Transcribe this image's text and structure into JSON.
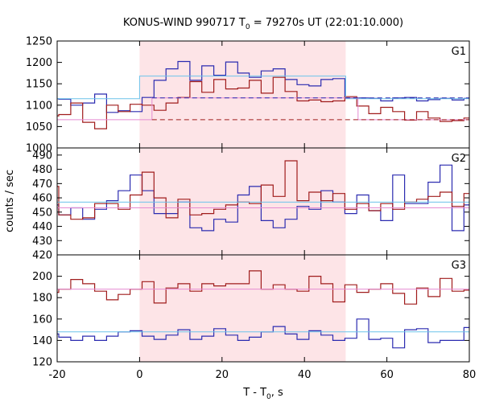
{
  "chart_data": {
    "type": "line",
    "title_parts": {
      "a": "KONUS-WIND 990717 T",
      "sub": "0",
      "b": " = 79270s UT (22:01:10.000)"
    },
    "xlabel_parts": {
      "a": "T - T",
      "sub": "0",
      "b": ", s"
    },
    "ylabel": "counts / sec",
    "xlim": [
      -20,
      80
    ],
    "x_ticks": [
      -20,
      0,
      20,
      40,
      60,
      80
    ],
    "shaded_interval": [
      0,
      50
    ],
    "colors": {
      "blue": "#2b2bb0",
      "red": "#a01c1c",
      "cyan": "#6cc3ea",
      "pink": "#e58bd2",
      "shade": "#fde4e7"
    },
    "panels": [
      {
        "label": "G1",
        "ylim": [
          1000,
          1250
        ],
        "y_ticks": [
          1000,
          1050,
          1100,
          1150,
          1200,
          1250
        ],
        "series": [
          {
            "color": "blue",
            "x": [
              -22.5,
              -19.6,
              -16.7,
              -13.8,
              -10.9,
              -8.0,
              -5.2,
              -2.3,
              0.6,
              3.5,
              6.4,
              9.3,
              12.2,
              15.1,
              18.0,
              20.9,
              23.8,
              26.6,
              29.5,
              32.4,
              35.3,
              38.2,
              41.1,
              44.0,
              46.9,
              49.8,
              52.7,
              55.6,
              58.5,
              61.4,
              64.3,
              67.2,
              70.0,
              72.9,
              75.8,
              78.7
            ],
            "y": [
              1115,
              1114,
              1100,
              1105,
              1126,
              1083,
              1087,
              1085,
              1118,
              1158,
              1185,
              1202,
              1158,
              1192,
              1170,
              1201,
              1175,
              1165,
              1180,
              1185,
              1160,
              1148,
              1145,
              1160,
              1162,
              1117,
              1117,
              1116,
              1110,
              1117,
              1118,
              1110,
              1113,
              1116,
              1112,
              1116
            ]
          },
          {
            "color": "red",
            "x": [
              -22.5,
              -19.6,
              -16.7,
              -13.8,
              -10.9,
              -8.0,
              -5.2,
              -2.3,
              0.6,
              3.5,
              6.4,
              9.3,
              12.2,
              15.1,
              18.0,
              20.9,
              23.8,
              26.6,
              29.5,
              32.4,
              35.3,
              38.2,
              41.1,
              44.0,
              46.9,
              49.8,
              52.7,
              55.6,
              58.5,
              61.4,
              64.3,
              67.2,
              70.0,
              72.9,
              75.8,
              78.7
            ],
            "y": [
              1075,
              1078,
              1105,
              1060,
              1045,
              1100,
              1085,
              1102,
              1100,
              1088,
              1105,
              1118,
              1155,
              1130,
              1160,
              1138,
              1140,
              1158,
              1128,
              1165,
              1132,
              1110,
              1112,
              1108,
              1110,
              1120,
              1098,
              1080,
              1095,
              1085,
              1065,
              1085,
              1070,
              1062,
              1064,
              1070
            ]
          },
          {
            "color": "cyan",
            "x": [
              -20,
              0,
              0,
              50,
              50,
              80
            ],
            "y": [
              1115,
              1115,
              1168,
              1168,
              1115,
              1115
            ],
            "style": "solid"
          },
          {
            "color": "pink",
            "x": [
              -20,
              3,
              3,
              50,
              50,
              53,
              53,
              80
            ],
            "y": [
              1066,
              1066,
              1117,
              1117,
              1117,
              1117,
              1066,
              1066
            ],
            "style": "solid"
          },
          {
            "color": "red",
            "x": [
              3,
              80
            ],
            "y": [
              1066,
              1066
            ],
            "style": "dashed"
          },
          {
            "color": "blue",
            "x": [
              3,
              80
            ],
            "y": [
              1117,
              1117
            ],
            "style": "dashed"
          }
        ]
      },
      {
        "label": "G2",
        "ylim": [
          420,
          495
        ],
        "y_ticks": [
          420,
          430,
          440,
          450,
          460,
          470,
          480,
          490
        ],
        "series": [
          {
            "color": "blue",
            "x": [
              -22.5,
              -19.6,
              -16.7,
              -13.8,
              -10.9,
              -8.0,
              -5.2,
              -2.3,
              0.6,
              3.5,
              6.4,
              9.3,
              12.2,
              15.1,
              18.0,
              20.9,
              23.8,
              26.6,
              29.5,
              32.4,
              35.3,
              38.2,
              41.1,
              44.0,
              46.9,
              49.8,
              52.7,
              55.6,
              58.5,
              61.4,
              64.3,
              67.2,
              70.0,
              72.9,
              75.8,
              78.7
            ],
            "y": [
              455,
              448,
              453,
              445,
              452,
              458,
              465,
              476,
              465,
              449,
              449,
              457,
              439,
              437,
              445,
              443,
              462,
              468,
              444,
              439,
              445,
              454,
              452,
              465,
              457,
              449,
              462,
              451,
              444,
              476,
              456,
              456,
              471,
              483,
              437,
              455
            ]
          },
          {
            "color": "red",
            "x": [
              -22.5,
              -19.6,
              -16.7,
              -13.8,
              -10.9,
              -8.0,
              -5.2,
              -2.3,
              0.6,
              3.5,
              6.4,
              9.3,
              12.2,
              15.1,
              18.0,
              20.9,
              23.8,
              26.6,
              29.5,
              32.4,
              35.3,
              38.2,
              41.1,
              44.0,
              46.9,
              49.8,
              52.7,
              55.6,
              58.5,
              61.4,
              64.3,
              67.2,
              70.0,
              72.9,
              75.8,
              78.7
            ],
            "y": [
              468,
              448,
              445,
              446,
              456,
              456,
              452,
              462,
              478,
              460,
              446,
              459,
              448,
              449,
              452,
              455,
              457,
              456,
              469,
              461,
              486,
              458,
              464,
              458,
              463,
              452,
              456,
              451,
              456,
              452,
              457,
              459,
              461,
              464,
              454,
              463
            ]
          },
          {
            "color": "cyan",
            "x": [
              -20,
              80
            ],
            "y": [
              457,
              457
            ],
            "style": "solid"
          },
          {
            "color": "pink",
            "x": [
              -20,
              80
            ],
            "y": [
              453,
              453
            ],
            "style": "solid"
          }
        ]
      },
      {
        "label": "G3",
        "ylim": [
          120,
          220
        ],
        "y_ticks": [
          120,
          140,
          160,
          180,
          200
        ],
        "series": [
          {
            "color": "red",
            "x": [
              -22.5,
              -19.6,
              -16.7,
              -13.8,
              -10.9,
              -8.0,
              -5.2,
              -2.3,
              0.6,
              3.5,
              6.4,
              9.3,
              12.2,
              15.1,
              18.0,
              20.9,
              23.8,
              26.6,
              29.5,
              32.4,
              35.3,
              38.2,
              41.1,
              44.0,
              46.9,
              49.8,
              52.7,
              55.6,
              58.5,
              61.4,
              64.3,
              67.2,
              70.0,
              72.9,
              75.8,
              78.7
            ],
            "y": [
              185,
              188,
              197,
              193,
              186,
              178,
              183,
              188,
              195,
              175,
              189,
              193,
              186,
              193,
              191,
              193,
              193,
              205,
              188,
              192,
              188,
              186,
              200,
              193,
              176,
              192,
              185,
              188,
              193,
              184,
              174,
              189,
              181,
              198,
              186,
              187
            ]
          },
          {
            "color": "blue",
            "x": [
              -22.5,
              -19.6,
              -16.7,
              -13.8,
              -10.9,
              -8.0,
              -5.2,
              -2.3,
              0.6,
              3.5,
              6.4,
              9.3,
              12.2,
              15.1,
              18.0,
              20.9,
              23.8,
              26.6,
              29.5,
              32.4,
              35.3,
              38.2,
              41.1,
              44.0,
              46.9,
              49.8,
              52.7,
              55.6,
              58.5,
              61.4,
              64.3,
              67.2,
              70.0,
              72.9,
              75.8,
              78.7
            ],
            "y": [
              146,
              143,
              140,
              144,
              140,
              144,
              148,
              149,
              144,
              141,
              145,
              150,
              141,
              144,
              151,
              145,
              140,
              143,
              148,
              153,
              146,
              141,
              149,
              145,
              140,
              142,
              160,
              141,
              142,
              133,
              150,
              151,
              138,
              140,
              140,
              152
            ]
          },
          {
            "color": "pink",
            "x": [
              -20,
              80
            ],
            "y": [
              188,
              188
            ],
            "style": "solid"
          },
          {
            "color": "cyan",
            "x": [
              -20,
              80
            ],
            "y": [
              148,
              148
            ],
            "style": "solid"
          }
        ]
      }
    ]
  }
}
